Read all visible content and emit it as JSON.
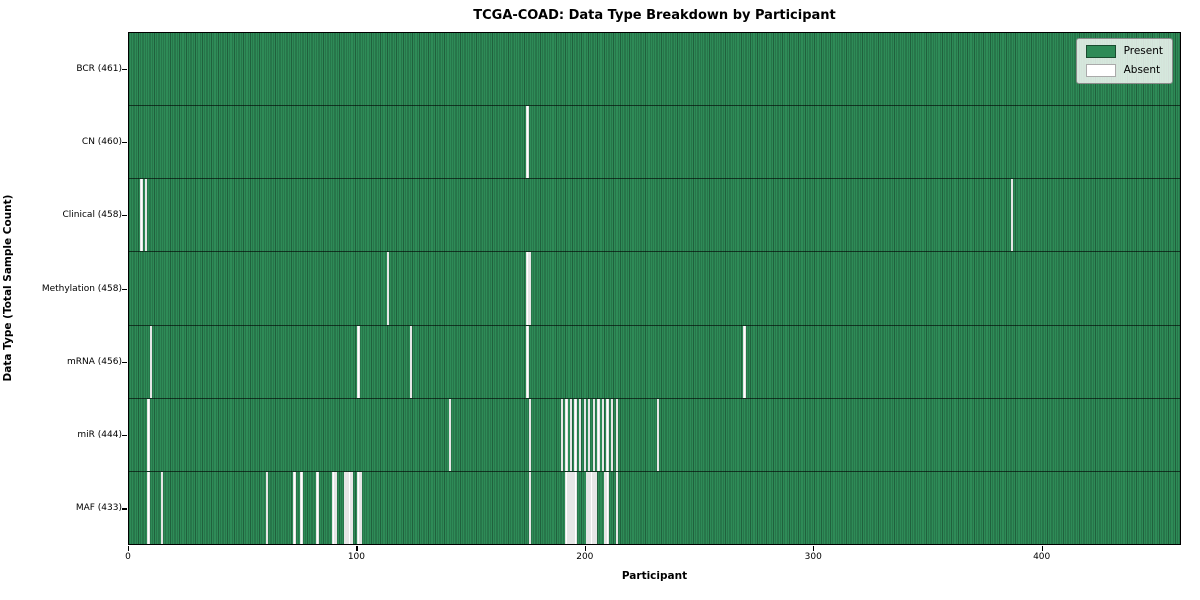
{
  "title": "TCGA-COAD: Data Type Breakdown by Participant",
  "axes": {
    "xlabel": "Participant",
    "ylabel": "Data Type (Total Sample Count)",
    "x_ticks": [
      0,
      100,
      200,
      300,
      400
    ]
  },
  "legend": {
    "present_label": "Present",
    "absent_label": "Absent",
    "position": "upper right"
  },
  "colors": {
    "present": "#2e8b57",
    "absent": "#ffffff",
    "frame": "#000000"
  },
  "chart_data": {
    "type": "heatmap",
    "title": "TCGA-COAD: Data Type Breakdown by Participant",
    "xlabel": "Participant",
    "ylabel": "Data Type (Total Sample Count)",
    "x_range": [
      0,
      461
    ],
    "x_tick_values": [
      0,
      100,
      200,
      300,
      400
    ],
    "total_participants": 461,
    "grid": false,
    "legend_entries": [
      "Present",
      "Absent"
    ],
    "legend_position": "upper right",
    "rows": [
      {
        "data_type": "BCR",
        "label": "BCR (461)",
        "present_count": 461,
        "absent_count": 0,
        "absent_participants": []
      },
      {
        "data_type": "CN",
        "label": "CN (460)",
        "present_count": 460,
        "absent_count": 1,
        "absent_participants": [
          174
        ]
      },
      {
        "data_type": "Clinical",
        "label": "Clinical (458)",
        "present_count": 458,
        "absent_count": 3,
        "absent_participants": [
          5,
          7,
          386
        ]
      },
      {
        "data_type": "Methylation",
        "label": "Methylation (458)",
        "present_count": 458,
        "absent_count": 3,
        "absent_participants": [
          113,
          174,
          175
        ]
      },
      {
        "data_type": "mRNA",
        "label": "mRNA (456)",
        "present_count": 456,
        "absent_count": 5,
        "absent_participants": [
          9,
          100,
          123,
          174,
          269
        ]
      },
      {
        "data_type": "miR",
        "label": "miR (444)",
        "present_count": 444,
        "absent_count": 17,
        "absent_participants": [
          8,
          140,
          175,
          189,
          191,
          193,
          195,
          197,
          199,
          201,
          203,
          205,
          207,
          209,
          211,
          213,
          231
        ]
      },
      {
        "data_type": "MAF",
        "label": "MAF (433)",
        "present_count": 433,
        "absent_count": 28,
        "absent_participants": [
          8,
          14,
          60,
          72,
          75,
          82,
          89,
          90,
          94,
          95,
          96,
          97,
          100,
          101,
          175,
          191,
          192,
          193,
          194,
          195,
          200,
          201,
          202,
          203,
          204,
          208,
          209,
          213
        ]
      }
    ]
  }
}
